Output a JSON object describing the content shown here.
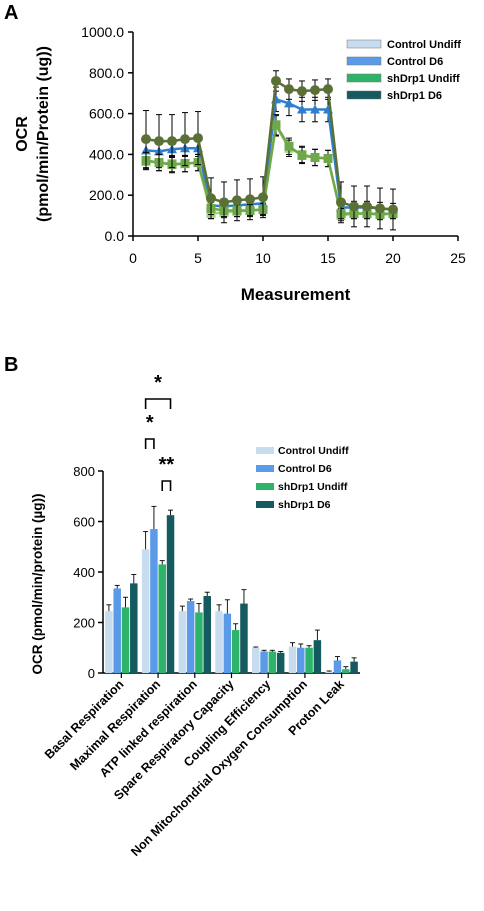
{
  "panels": {
    "a": {
      "letter": "A"
    },
    "b": {
      "letter": "B"
    }
  },
  "colors": {
    "Control Undiff": "#c7dcef",
    "Control D6": "#5b9ae8",
    "shDrp1 Undiff": "#2db36a",
    "shDrp1 D6": "#145a5e",
    "line_control_undiff": "#a9cf7f",
    "line_control_d6": "#2f7fd0",
    "line_shdrp1_undiff": "#6ea84b",
    "line_shdrp1_d6": "#5a7034"
  },
  "chart_data": [
    {
      "type": "line",
      "panel": "A",
      "title": "",
      "xlabel": "Measurement",
      "ylabel_lines": [
        "OCR",
        "(pmol/min/Protein (ug))"
      ],
      "xlim": [
        0,
        25
      ],
      "ylim": [
        0,
        1000
      ],
      "xticks": [
        "0",
        "5",
        "10",
        "15",
        "20",
        "25"
      ],
      "yticks": [
        "0.0",
        "200.0",
        "400.0",
        "600.0",
        "800.0",
        "1000.0"
      ],
      "legend_position": "top-right",
      "x": [
        1,
        2,
        3,
        4,
        5,
        6,
        7,
        8,
        9,
        10,
        11,
        12,
        13,
        14,
        15,
        16,
        17,
        18,
        19,
        20
      ],
      "series": [
        {
          "name": "Control Undiff",
          "marker": "square",
          "values": [
            365,
            360,
            355,
            355,
            360,
            110,
            115,
            120,
            125,
            130,
            540,
            430,
            400,
            385,
            380,
            100,
            110,
            110,
            110,
            110
          ],
          "errors": [
            40,
            40,
            40,
            40,
            40,
            25,
            25,
            25,
            25,
            25,
            50,
            40,
            40,
            40,
            40,
            25,
            25,
            25,
            25,
            25
          ]
        },
        {
          "name": "Control D6",
          "marker": "triangle",
          "values": [
            420,
            415,
            425,
            430,
            430,
            150,
            145,
            150,
            155,
            160,
            670,
            650,
            620,
            620,
            620,
            140,
            140,
            140,
            135,
            130
          ],
          "errors": [
            40,
            40,
            40,
            40,
            40,
            30,
            30,
            30,
            30,
            30,
            60,
            60,
            60,
            60,
            60,
            30,
            30,
            30,
            30,
            30
          ]
        },
        {
          "name": "shDrp1 Undiff",
          "marker": "square",
          "values": [
            370,
            360,
            350,
            355,
            360,
            135,
            125,
            125,
            125,
            130,
            545,
            440,
            395,
            385,
            380,
            110,
            110,
            110,
            105,
            110
          ],
          "errors": [
            40,
            40,
            40,
            40,
            40,
            30,
            30,
            30,
            30,
            30,
            50,
            40,
            40,
            40,
            40,
            25,
            25,
            25,
            25,
            25
          ]
        },
        {
          "name": "shDrp1 D6",
          "marker": "circle",
          "values": [
            475,
            465,
            465,
            475,
            480,
            185,
            165,
            175,
            180,
            190,
            760,
            720,
            710,
            715,
            720,
            165,
            145,
            145,
            135,
            130
          ],
          "errors": [
            140,
            130,
            130,
            130,
            130,
            100,
            100,
            100,
            100,
            100,
            50,
            50,
            50,
            50,
            50,
            100,
            100,
            100,
            100,
            100
          ]
        }
      ]
    },
    {
      "type": "bar",
      "panel": "B",
      "title": "",
      "xlabel": "",
      "ylabel": "OCR (pmol/min/protein (µg))",
      "ylim": [
        0,
        800
      ],
      "yticks": [
        "0",
        "200",
        "400",
        "600",
        "800"
      ],
      "legend_position": "top-right",
      "categories": [
        "Basal Respiration",
        "Maximal Respiration",
        "ATP linked respiration",
        "Spare Respiratory Capacity",
        "Coupling Efficiency",
        "Non Mitochondrial Oxygen Consumption",
        "Proton Leak"
      ],
      "series": [
        {
          "name": "Control Undiff",
          "values": [
            245,
            490,
            245,
            245,
            100,
            105,
            5
          ],
          "errors": [
            25,
            70,
            20,
            25,
            3,
            15,
            3
          ]
        },
        {
          "name": "Control D6",
          "values": [
            335,
            570,
            285,
            235,
            85,
            100,
            50
          ],
          "errors": [
            12,
            90,
            8,
            55,
            5,
            15,
            15
          ]
        },
        {
          "name": "shDrp1 Undiff",
          "values": [
            260,
            430,
            240,
            170,
            85,
            100,
            15
          ],
          "errors": [
            40,
            15,
            35,
            25,
            5,
            8,
            10
          ]
        },
        {
          "name": "shDrp1 D6",
          "values": [
            355,
            625,
            305,
            275,
            80,
            130,
            45
          ],
          "errors": [
            35,
            20,
            15,
            55,
            5,
            40,
            15
          ]
        }
      ],
      "significance": [
        {
          "category": "Maximal Respiration",
          "from": "Control Undiff",
          "to": "shDrp1 D6",
          "label": "*"
        },
        {
          "category": "Maximal Respiration",
          "from": "Control Undiff",
          "to": "Control D6",
          "label": "*"
        },
        {
          "category": "Maximal Respiration",
          "from": "shDrp1 Undiff",
          "to": "shDrp1 D6",
          "label": "**"
        }
      ]
    }
  ]
}
